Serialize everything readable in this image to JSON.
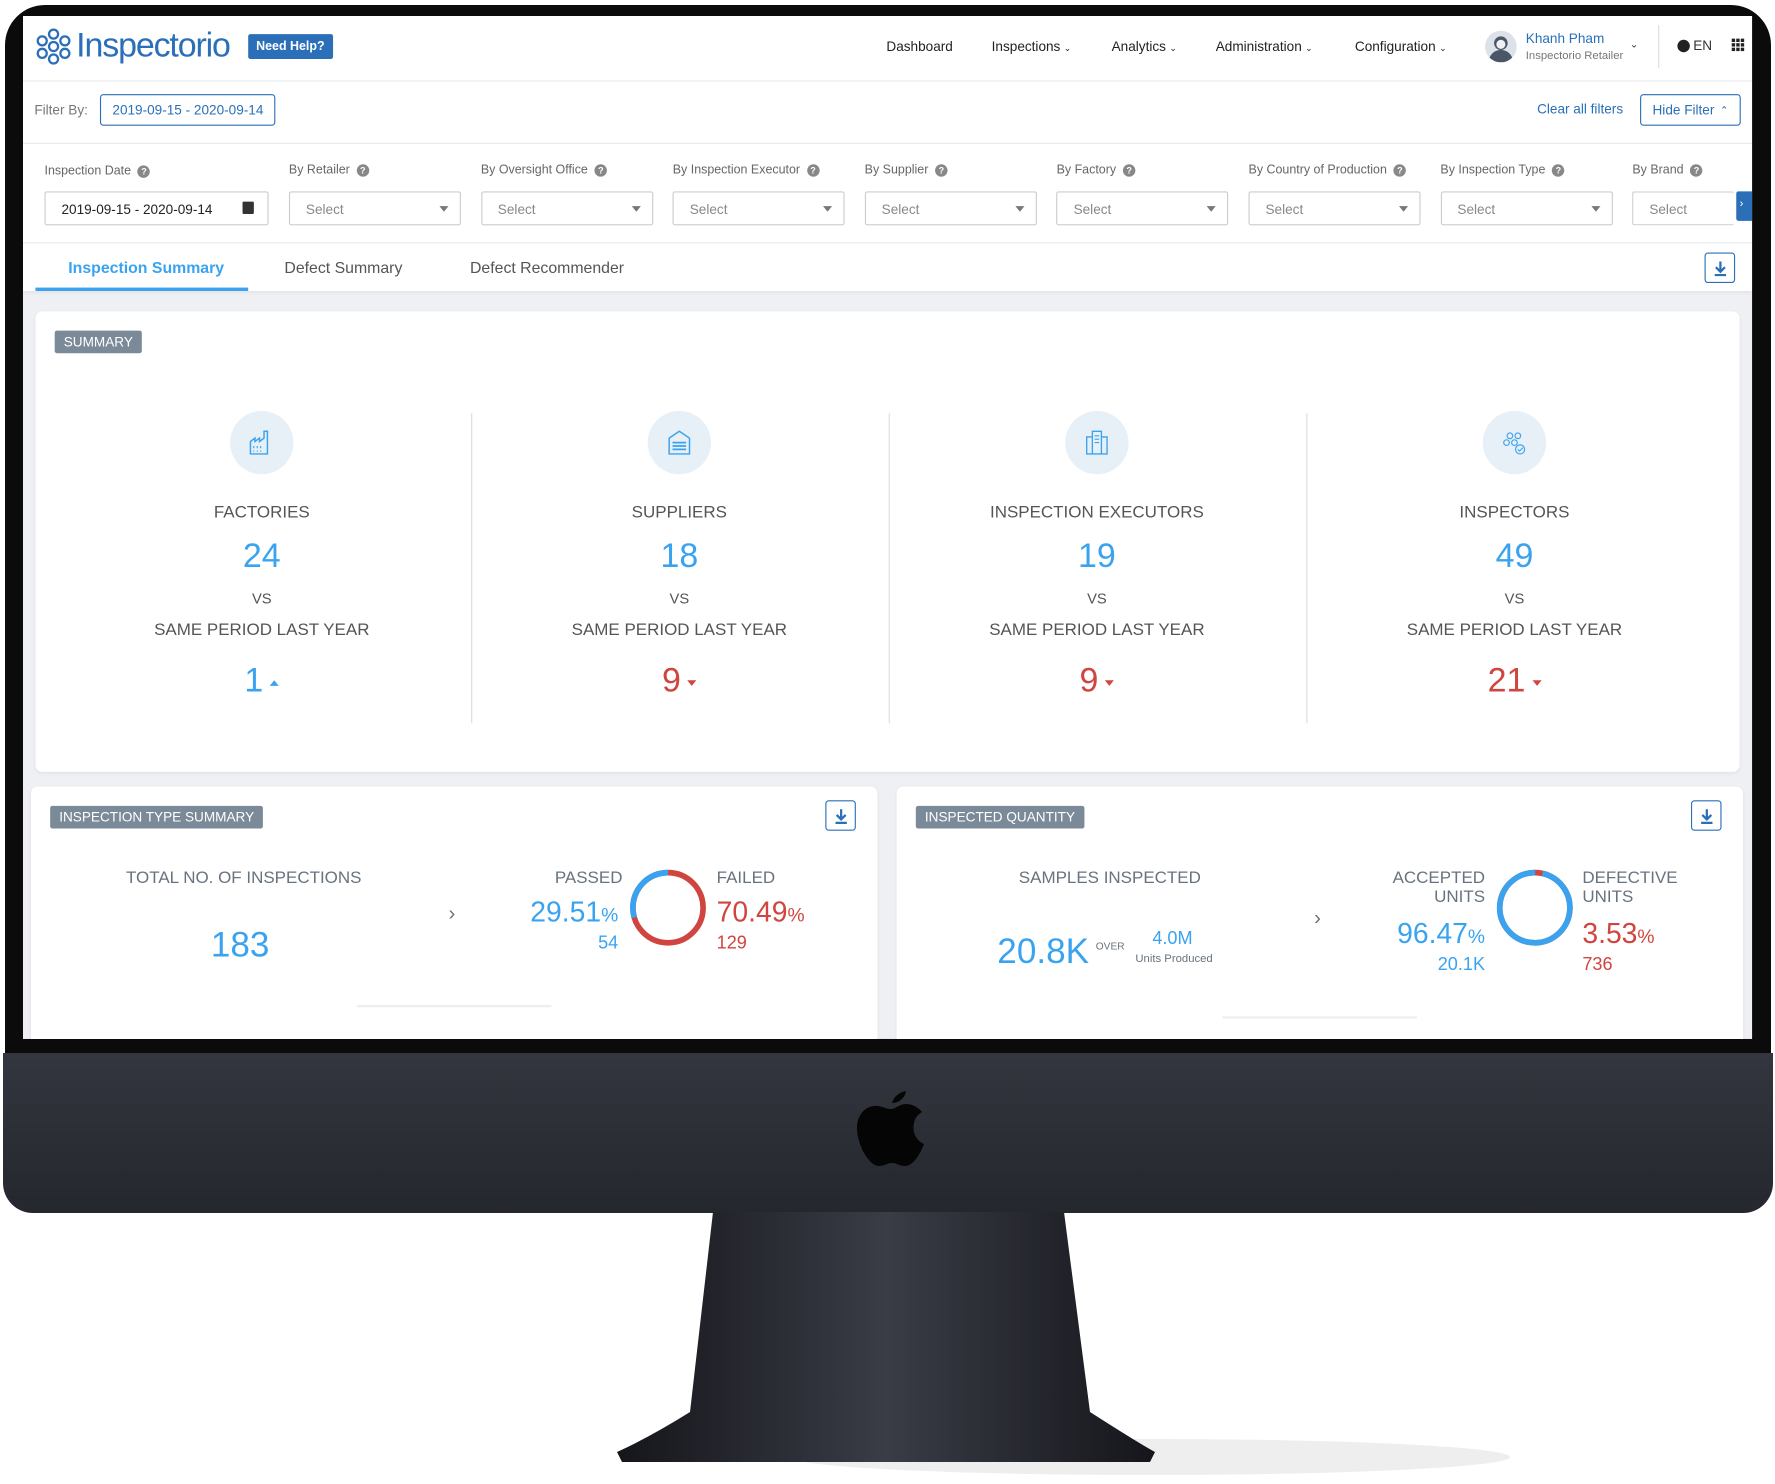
{
  "app": {
    "logo": "Inspectorio",
    "help_label": "Need Help?"
  },
  "nav": {
    "items": [
      {
        "label": "Dashboard",
        "dropdown": false
      },
      {
        "label": "Inspections",
        "dropdown": true
      },
      {
        "label": "Analytics",
        "dropdown": true
      },
      {
        "label": "Administration",
        "dropdown": true
      },
      {
        "label": "Configuration",
        "dropdown": true
      }
    ],
    "user": {
      "name": "Khanh Pham",
      "role": "Inspectorio Retailer"
    },
    "language": "EN"
  },
  "filterbar": {
    "label": "Filter By:",
    "active_filter": "2019-09-15 - 2020-09-14",
    "clear_label": "Clear all filters",
    "hide_label": "Hide Filter"
  },
  "filters": {
    "date": {
      "label": "Inspection Date",
      "value": "2019-09-15 - 2020-09-14"
    },
    "selects": [
      {
        "label": "By Retailer",
        "placeholder": "Select"
      },
      {
        "label": "By Oversight Office",
        "placeholder": "Select"
      },
      {
        "label": "By Inspection Executor",
        "placeholder": "Select"
      },
      {
        "label": "By Supplier",
        "placeholder": "Select"
      },
      {
        "label": "By Factory",
        "placeholder": "Select"
      },
      {
        "label": "By Country of Production",
        "placeholder": "Select"
      },
      {
        "label": "By Inspection Type",
        "placeholder": "Select"
      },
      {
        "label": "By Brand",
        "placeholder": "Select"
      }
    ]
  },
  "tabs": [
    {
      "label": "Inspection Summary",
      "active": true
    },
    {
      "label": "Defect Summary",
      "active": false
    },
    {
      "label": "Defect Recommender",
      "active": false
    }
  ],
  "summary": {
    "title": "SUMMARY",
    "vs": "VS",
    "period": "SAME PERIOD LAST YEAR",
    "stats": [
      {
        "icon": "factory-icon",
        "label": "FACTORIES",
        "value": "24",
        "previous": "1",
        "trend": "up"
      },
      {
        "icon": "supplier-icon",
        "label": "SUPPLIERS",
        "value": "18",
        "previous": "9",
        "trend": "down"
      },
      {
        "icon": "building-icon",
        "label": "INSPECTION EXECUTORS",
        "value": "19",
        "previous": "9",
        "trend": "down"
      },
      {
        "icon": "inspectors-icon",
        "label": "INSPECTORS",
        "value": "49",
        "previous": "21",
        "trend": "down"
      }
    ]
  },
  "inspection_type": {
    "title": "INSPECTION TYPE SUMMARY",
    "total_label": "TOTAL NO. OF INSPECTIONS",
    "total": "183",
    "passed": {
      "label": "PASSED",
      "percent": "29.51",
      "count": "54"
    },
    "failed": {
      "label": "FAILED",
      "percent": "70.49",
      "count": "129"
    }
  },
  "inspected_quantity": {
    "title": "INSPECTED QUANTITY",
    "samples_label": "SAMPLES INSPECTED",
    "samples": "20.8K",
    "over": "OVER",
    "produced": "4.0M",
    "produced_label": "Units Produced",
    "accepted": {
      "label_1": "ACCEPTED",
      "label_2": "UNITS",
      "percent": "96.47",
      "count": "20.1K"
    },
    "defective": {
      "label_1": "DEFECTIVE",
      "label_2": "UNITS",
      "percent": "3.53",
      "count": "736"
    }
  },
  "colors": {
    "primary": "#2a6fb8",
    "accent": "#3aa3f0",
    "negative": "#d0453f",
    "badge": "#7b8a98"
  }
}
